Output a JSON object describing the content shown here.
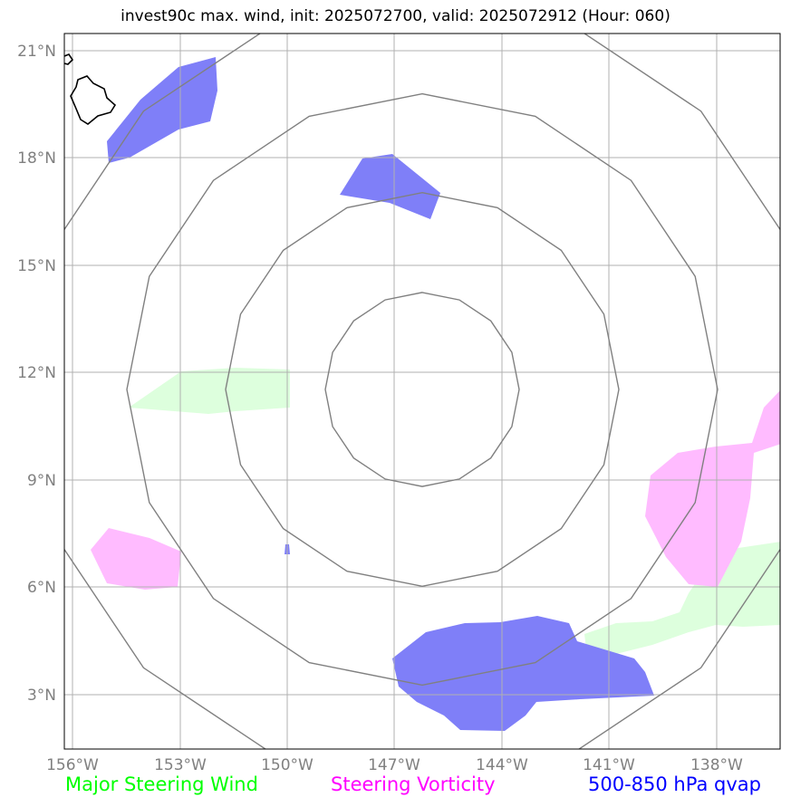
{
  "title": "invest90c max. wind, init: 2025072700, valid: 2025072912 (Hour: 060)",
  "axes": {
    "lat_labels": [
      "21°N",
      "18°N",
      "15°N",
      "12°N",
      "9°N",
      "6°N",
      "3°N"
    ],
    "lon_labels": [
      "156°W",
      "153°W",
      "150°W",
      "147°W",
      "144°W",
      "141°W",
      "138°W"
    ]
  },
  "legend": {
    "wind": "Major Steering Wind",
    "vorticity": "Steering Vorticity",
    "qvap": "500-850 hPa qvap"
  },
  "colors": {
    "wind": "#00ff00",
    "wind_fill": "#ddffdd",
    "vorticity": "#ff00ff",
    "vorticity_fill": "#ffbbff",
    "qvap": "#0000ff",
    "qvap_fill": "#7f7ff8",
    "grid": "#b0b0b0",
    "rings": "#808080"
  }
}
